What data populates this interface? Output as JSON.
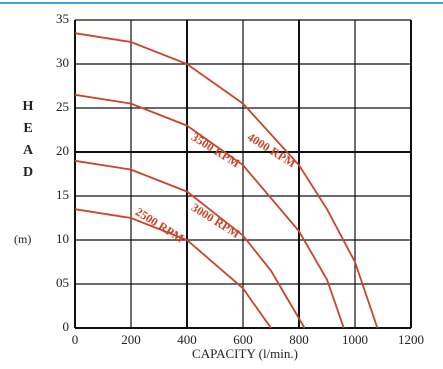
{
  "chart_data": {
    "type": "line",
    "xlabel": "CAPACITY (l/min.)",
    "ylabel": "HEAD",
    "yunit": "(m)",
    "xlim": [
      0,
      1200
    ],
    "xticks": [
      0,
      200,
      400,
      600,
      800,
      1000,
      1200
    ],
    "ylim": [
      0,
      35
    ],
    "yticks": [
      0,
      {
        "value": 5,
        "label": "05"
      },
      10,
      15,
      20,
      25,
      30,
      35
    ],
    "grid": true,
    "series": [
      {
        "name": "4000 RPM",
        "color": "#c8452a",
        "x": [
          0,
          200,
          400,
          600,
          800,
          900,
          1000,
          1080
        ],
        "values": [
          33.5,
          32.5,
          30,
          25.5,
          18.5,
          13.5,
          7.5,
          0
        ]
      },
      {
        "name": "3500 RPM",
        "color": "#c8452a",
        "x": [
          0,
          200,
          400,
          600,
          800,
          900,
          960
        ],
        "values": [
          26.5,
          25.5,
          23,
          18.5,
          11,
          5.5,
          0
        ]
      },
      {
        "name": "3000 RPM",
        "color": "#c8452a",
        "x": [
          0,
          200,
          400,
          600,
          700,
          820
        ],
        "values": [
          19,
          18,
          15.5,
          10.5,
          6.5,
          0
        ]
      },
      {
        "name": "2500 RPM",
        "color": "#c8452a",
        "x": [
          0,
          200,
          400,
          600,
          700
        ],
        "values": [
          13.5,
          12.5,
          10,
          4.5,
          0
        ]
      }
    ]
  }
}
